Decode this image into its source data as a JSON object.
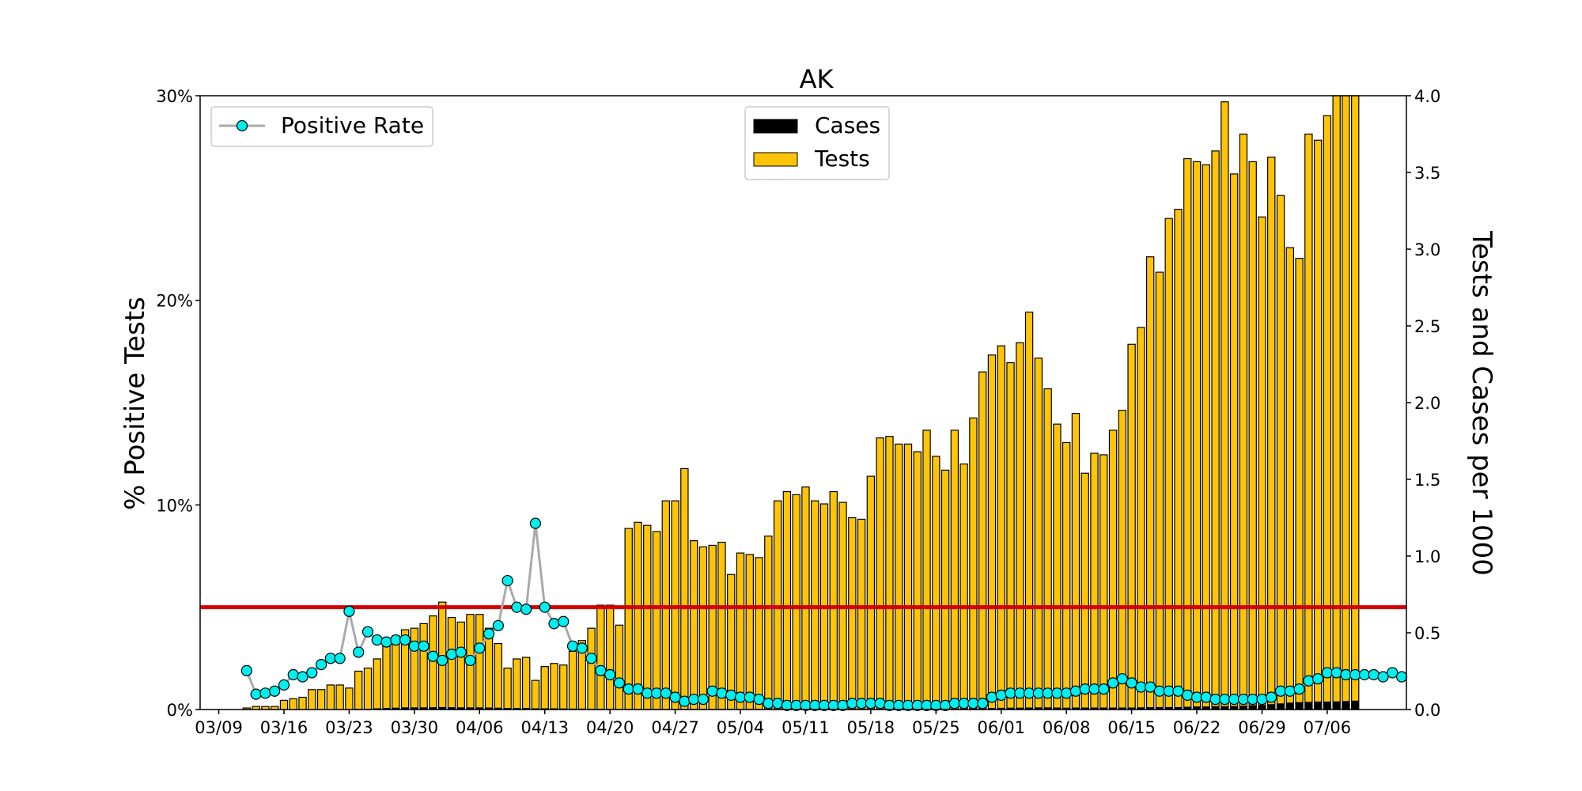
{
  "chart_data": {
    "type": "bar",
    "title": "AK",
    "y_left_label": "% Positive Tests",
    "y_right_label": "Tests and Cases per 1000",
    "y_left_ticks": [
      "0%",
      "10%",
      "20%",
      "30%"
    ],
    "y_left_range": [
      0,
      30
    ],
    "y_right_ticks": [
      "0.0",
      "0.5",
      "1.0",
      "1.5",
      "2.0",
      "2.5",
      "3.0",
      "3.5",
      "4.0"
    ],
    "y_right_range": [
      0,
      4.0
    ],
    "x_start": "03/09",
    "x_ticks": [
      "03/09",
      "03/16",
      "03/23",
      "03/30",
      "04/06",
      "04/13",
      "04/20",
      "04/27",
      "05/04",
      "05/11",
      "05/18",
      "05/25",
      "06/01",
      "06/08",
      "06/15",
      "06/22",
      "06/29",
      "07/06"
    ],
    "x_range_days": [
      -2,
      127.5
    ],
    "threshold_percent": 5,
    "threshold_color": "#d40000",
    "legends": {
      "left": [
        {
          "label": "Positive Rate"
        }
      ],
      "center": [
        {
          "label": "Cases"
        },
        {
          "label": "Tests"
        }
      ]
    },
    "colors": {
      "tests": "#FFC408",
      "cases": "#000000",
      "positive_rate_marker": "#00EEEE",
      "positive_rate_line": "#AAAAAA"
    },
    "series": [
      {
        "name": "Tests",
        "axis": "right",
        "start": "03/12",
        "values": [
          0.01,
          0.02,
          0.02,
          0.02,
          0.06,
          0.07,
          0.08,
          0.13,
          0.13,
          0.16,
          0.16,
          0.14,
          0.25,
          0.27,
          0.33,
          0.42,
          0.48,
          0.52,
          0.53,
          0.56,
          0.61,
          0.7,
          0.6,
          0.57,
          0.62,
          0.62,
          0.53,
          0.43,
          0.27,
          0.33,
          0.34,
          0.19,
          0.28,
          0.3,
          0.29,
          0.38,
          0.45,
          0.53,
          0.68,
          0.68,
          0.55,
          1.18,
          1.22,
          1.2,
          1.16,
          1.36,
          1.36,
          1.57,
          1.1,
          1.06,
          1.07,
          1.09,
          0.88,
          1.02,
          1.01,
          0.99,
          1.13,
          1.36,
          1.42,
          1.4,
          1.45,
          1.36,
          1.34,
          1.42,
          1.35,
          1.25,
          1.24,
          1.52,
          1.77,
          1.78,
          1.73,
          1.73,
          1.68,
          1.82,
          1.65,
          1.56,
          1.82,
          1.6,
          1.9,
          2.2,
          2.31,
          2.37,
          2.26,
          2.39,
          2.59,
          2.29,
          2.09,
          1.86,
          1.74,
          1.93,
          1.54,
          1.67,
          1.66,
          1.82,
          1.95,
          2.38,
          2.49,
          2.95,
          2.85,
          3.2,
          3.26,
          3.59,
          3.57,
          3.55,
          3.64,
          3.96,
          3.49,
          3.75,
          3.57,
          3.21,
          3.6,
          3.35,
          3.01,
          2.94,
          3.75,
          3.71,
          3.87,
          4.0,
          4.0,
          4.0
        ]
      },
      {
        "name": "Cases",
        "axis": "right",
        "start": "03/12",
        "values": [
          0,
          0,
          0,
          0,
          0,
          0,
          0,
          0,
          0,
          0,
          0,
          0,
          0.005,
          0.005,
          0.008,
          0.01,
          0.012,
          0.014,
          0.014,
          0.014,
          0.015,
          0.016,
          0.015,
          0.014,
          0.014,
          0.014,
          0.013,
          0.012,
          0.01,
          0.01,
          0.01,
          0.008,
          0.008,
          0.008,
          0.007,
          0.006,
          0.006,
          0.005,
          0.005,
          0.005,
          0.004,
          0.004,
          0.004,
          0.004,
          0.004,
          0.004,
          0.004,
          0.004,
          0.004,
          0.004,
          0.004,
          0.004,
          0.004,
          0.004,
          0.004,
          0.004,
          0.004,
          0.004,
          0.004,
          0.004,
          0.004,
          0.004,
          0.004,
          0.004,
          0.004,
          0.004,
          0.004,
          0.004,
          0.004,
          0.004,
          0.004,
          0.004,
          0.004,
          0.005,
          0.005,
          0.005,
          0.005,
          0.006,
          0.007,
          0.008,
          0.01,
          0.011,
          0.012,
          0.012,
          0.013,
          0.014,
          0.014,
          0.013,
          0.012,
          0.013,
          0.013,
          0.013,
          0.013,
          0.013,
          0.013,
          0.013,
          0.014,
          0.015,
          0.016,
          0.016,
          0.016,
          0.018,
          0.02,
          0.02,
          0.022,
          0.022,
          0.023,
          0.025,
          0.028,
          0.03,
          0.035,
          0.04,
          0.045,
          0.048,
          0.05,
          0.052,
          0.052,
          0.053,
          0.055,
          0.058
        ]
      },
      {
        "name": "Positive Rate",
        "axis": "left",
        "start": "03/12",
        "values": [
          1.9,
          0.75,
          0.8,
          0.9,
          1.2,
          1.7,
          1.6,
          1.8,
          2.2,
          2.5,
          2.5,
          4.8,
          2.8,
          3.8,
          3.4,
          3.3,
          3.4,
          3.4,
          3.1,
          3.1,
          2.6,
          2.4,
          2.7,
          2.8,
          2.4,
          3.0,
          3.7,
          4.1,
          6.3,
          5.0,
          4.9,
          9.1,
          5.0,
          4.2,
          4.3,
          3.1,
          3.0,
          2.5,
          1.9,
          1.7,
          1.3,
          1.0,
          1.0,
          0.8,
          0.8,
          0.8,
          0.6,
          0.4,
          0.5,
          0.5,
          0.9,
          0.8,
          0.7,
          0.6,
          0.6,
          0.5,
          0.3,
          0.3,
          0.2,
          0.2,
          0.2,
          0.2,
          0.2,
          0.2,
          0.2,
          0.3,
          0.3,
          0.3,
          0.3,
          0.2,
          0.2,
          0.2,
          0.2,
          0.2,
          0.2,
          0.2,
          0.3,
          0.3,
          0.3,
          0.3,
          0.6,
          0.7,
          0.8,
          0.8,
          0.8,
          0.8,
          0.8,
          0.8,
          0.8,
          0.9,
          1.0,
          1.0,
          1.0,
          1.3,
          1.5,
          1.3,
          1.1,
          1.1,
          0.9,
          0.9,
          0.9,
          0.7,
          0.6,
          0.6,
          0.5,
          0.5,
          0.5,
          0.5,
          0.5,
          0.5,
          0.6,
          0.9,
          0.9,
          1.0,
          1.4,
          1.5,
          1.8,
          1.8,
          1.7,
          1.7,
          1.7,
          1.7,
          1.6,
          1.8,
          1.6
        ]
      }
    ]
  }
}
